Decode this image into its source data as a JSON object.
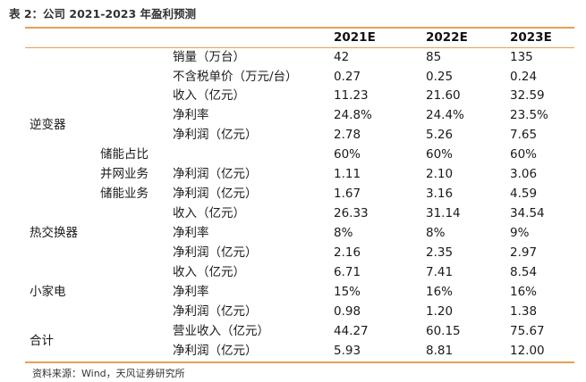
{
  "title": "表 2：公司  2021-2023 年盈利预测",
  "headers": [
    "2021E",
    "2022E",
    "2023E"
  ],
  "segments": {
    "inverter": "逆变器",
    "heat_exchanger": "热交换器",
    "appliance": "小家电",
    "total": "合计"
  },
  "subsegments": {
    "storage_share": "储能占比",
    "grid_business": "并网业务",
    "storage_business": "储能业务"
  },
  "rows": [
    {
      "metric": "销量（万台）",
      "v1": "42",
      "v2": "85",
      "v3": "135"
    },
    {
      "metric": "不含税单价（万元/台）",
      "v1": "0.27",
      "v2": "0.25",
      "v3": "0.24"
    },
    {
      "metric": "收入（亿元）",
      "v1": "11.23",
      "v2": "21.60",
      "v3": "32.59"
    },
    {
      "metric": "净利率",
      "v1": "24.8%",
      "v2": "24.4%",
      "v3": "23.5%"
    },
    {
      "metric": "净利润（亿元）",
      "v1": "2.78",
      "v2": "5.26",
      "v3": "7.65"
    },
    {
      "metric": "",
      "v1": "60%",
      "v2": "60%",
      "v3": "60%"
    },
    {
      "metric": "净利润（亿元）",
      "v1": "1.11",
      "v2": "2.10",
      "v3": "3.06"
    },
    {
      "metric": "净利润（亿元）",
      "v1": "1.67",
      "v2": "3.16",
      "v3": "4.59"
    },
    {
      "metric": "收入（亿元）",
      "v1": "26.33",
      "v2": "31.14",
      "v3": "34.54"
    },
    {
      "metric": "净利率",
      "v1": "8%",
      "v2": "8%",
      "v3": "9%"
    },
    {
      "metric": "净利润（亿元）",
      "v1": "2.16",
      "v2": "2.35",
      "v3": "2.97"
    },
    {
      "metric": "收入（亿元）",
      "v1": "6.71",
      "v2": "7.41",
      "v3": "8.54"
    },
    {
      "metric": "净利率",
      "v1": "15%",
      "v2": "16%",
      "v3": "16%"
    },
    {
      "metric": "净利润（亿元）",
      "v1": "0.98",
      "v2": "1.20",
      "v3": "1.38"
    },
    {
      "metric": "营业收入（亿元）",
      "v1": "44.27",
      "v2": "60.15",
      "v3": "75.67"
    },
    {
      "metric": "净利润（亿元）",
      "v1": "5.93",
      "v2": "8.81",
      "v3": "12.00"
    }
  ],
  "source": "资料来源：Wind，天风证券研究所"
}
